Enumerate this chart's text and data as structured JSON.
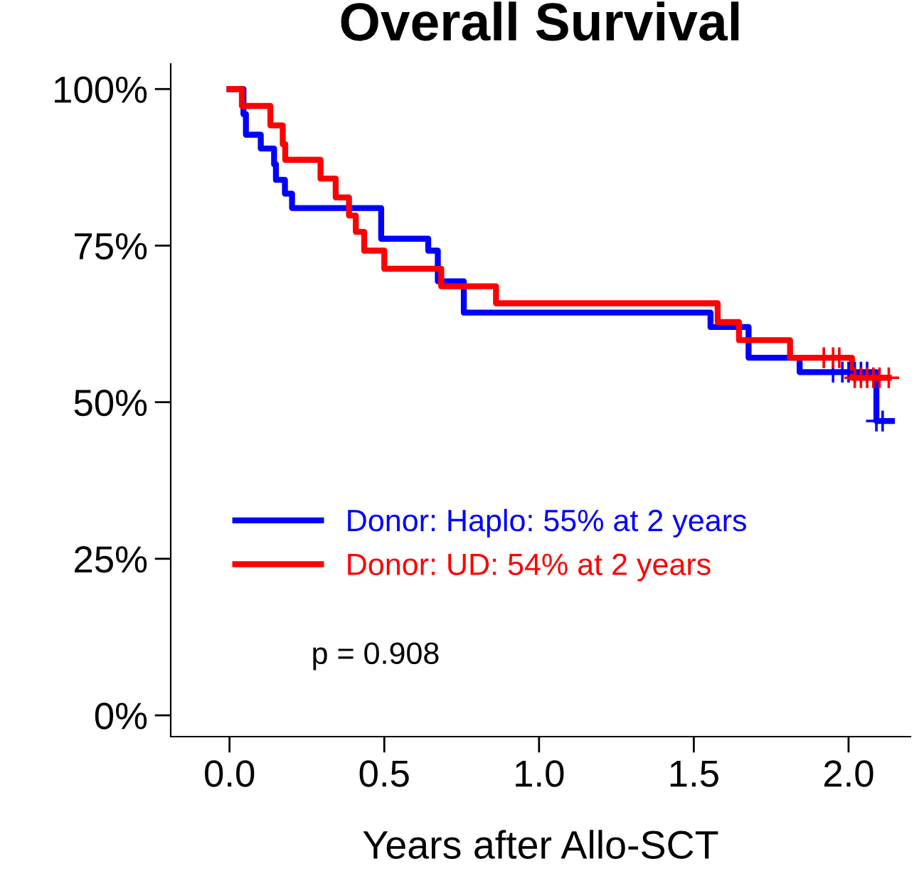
{
  "chart_data": {
    "type": "step",
    "title": "Overall Survival",
    "xlabel": "Years after Allo-SCT",
    "xlim": [
      -0.19,
      2.2
    ],
    "ylim": [
      -3.4,
      104
    ],
    "xticks": [
      {
        "value": 0,
        "label": "0.0"
      },
      {
        "value": 0.5,
        "label": "0.5"
      },
      {
        "value": 1,
        "label": "1.0"
      },
      {
        "value": 1.5,
        "label": "1.5"
      },
      {
        "value": 2,
        "label": "2.0"
      }
    ],
    "yticks": [
      {
        "value": 0,
        "label": "0%"
      },
      {
        "value": 25,
        "label": "25%"
      },
      {
        "value": 50,
        "label": "50%"
      },
      {
        "value": 75,
        "label": "75%"
      },
      {
        "value": 100,
        "label": "100%"
      }
    ],
    "grid": false,
    "legend": "bottom left",
    "line_style": "solid",
    "series": [
      {
        "name": "Donor: Haplo: 55% at 2 years",
        "color": "#0000ff",
        "x": [
          0,
          0.045,
          0.053,
          0.101,
          0.144,
          0.15,
          0.179,
          0.202,
          0.49,
          0.642,
          0.673,
          0.757,
          1.554,
          1.677,
          1.842,
          2.09,
          2.14
        ],
        "values": [
          100,
          96,
          92.7,
          90.5,
          88,
          85.5,
          83.3,
          81,
          76.1,
          74.2,
          69.3,
          64.3,
          62,
          57.1,
          54.8,
          47,
          47
        ]
      },
      {
        "name": "Donor: UD: 54% at 2 years",
        "color": "#ff0000",
        "x": [
          0,
          0.04,
          0.132,
          0.172,
          0.18,
          0.294,
          0.343,
          0.386,
          0.408,
          0.435,
          0.5,
          0.684,
          0.861,
          1.577,
          1.646,
          1.811,
          2.011,
          2.13
        ],
        "values": [
          100,
          97.3,
          94.2,
          91.2,
          88.7,
          85.7,
          82.7,
          79.8,
          77.2,
          74.2,
          71.3,
          68.5,
          65.8,
          62.8,
          59.9,
          57.1,
          53.9,
          53.9
        ]
      },
      {
        "type": "scatter",
        "marker": "cross",
        "color": "#0000ff",
        "x": [
          1.95,
          1.98,
          2.0,
          2.02,
          2.04,
          2.06,
          2.09,
          2.11
        ],
        "values": [
          54.8,
          54.8,
          54.8,
          54.8,
          54.8,
          54.8,
          47,
          47
        ]
      },
      {
        "type": "scatter",
        "marker": "cross",
        "color": "#ff0000",
        "x": [
          1.92,
          1.95,
          1.97,
          2.02,
          2.04,
          2.06,
          2.08,
          2.1,
          2.13
        ],
        "values": [
          57.1,
          57.1,
          57.1,
          53.9,
          53.9,
          53.9,
          53.9,
          53.9,
          53.9
        ]
      }
    ],
    "annotations": [
      "p = 0.908"
    ]
  }
}
